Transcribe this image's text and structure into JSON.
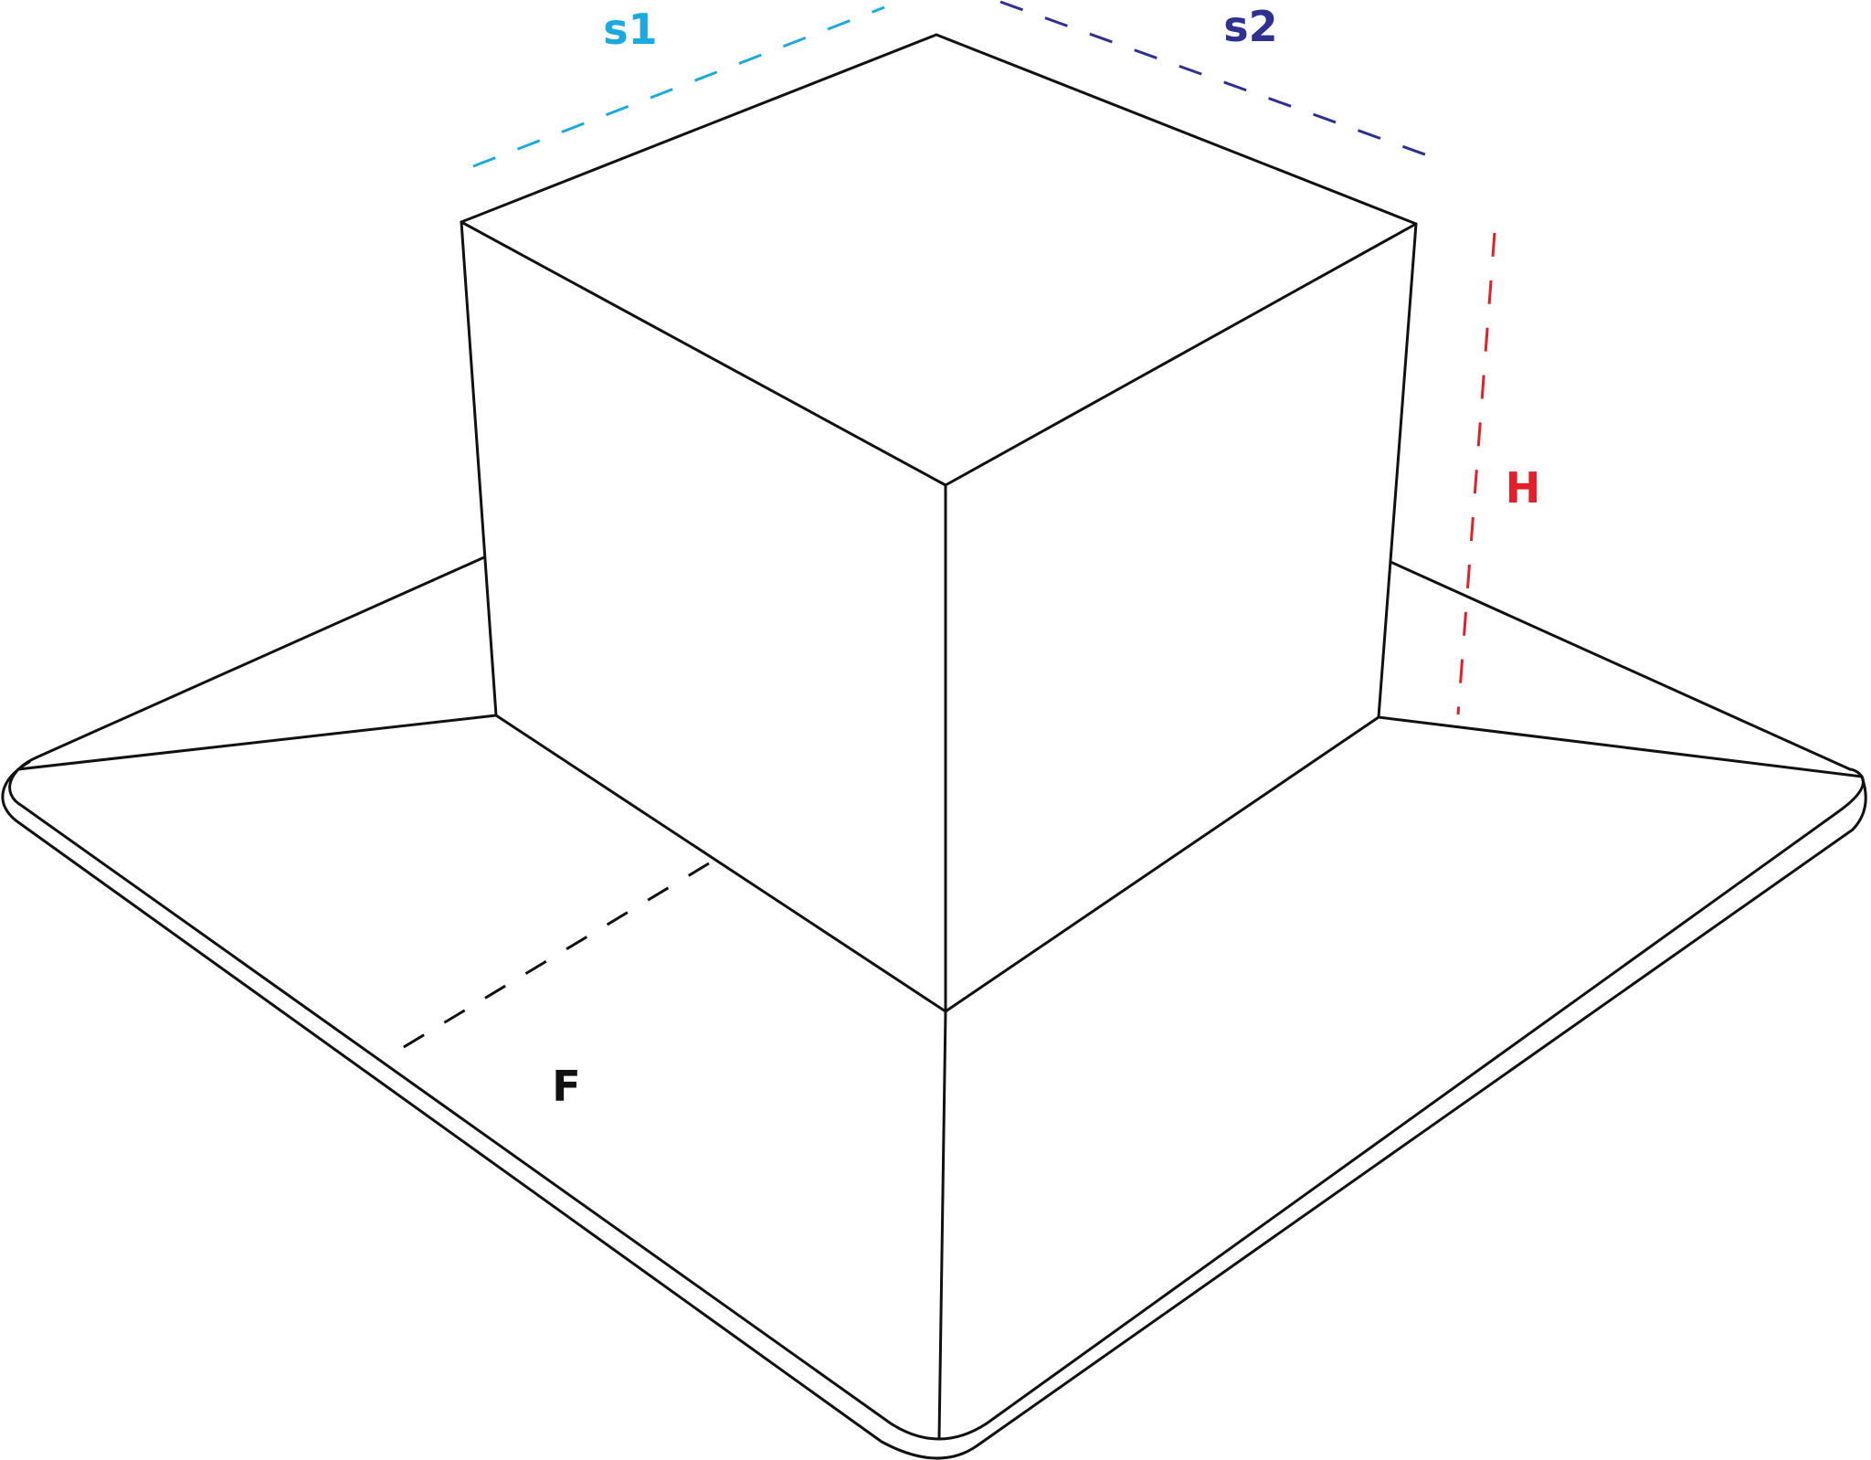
{
  "labels": {
    "s1": "s1",
    "s2": "s2",
    "h": "H",
    "f": "F"
  },
  "colors": {
    "s1": "#1aa9e0",
    "s2": "#2e3192",
    "h": "#e0202a",
    "f": "#111111",
    "edges": "#111111"
  }
}
